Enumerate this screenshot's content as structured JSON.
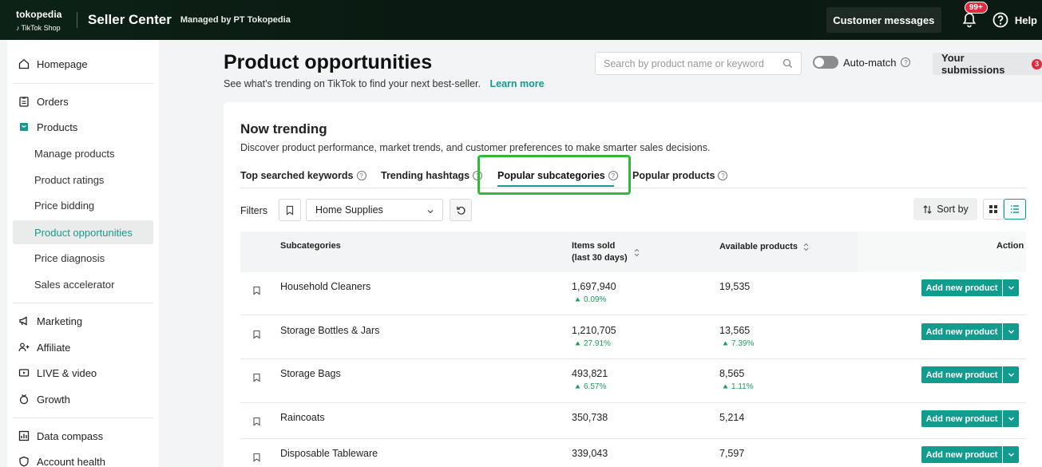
{
  "topbar": {
    "brand_top": "tokopedia",
    "brand_bottom": "TikTok Shop",
    "title": "Seller Center",
    "managed": "Managed by PT Tokopedia",
    "customer_messages": "Customer messages",
    "notif_badge": "99+",
    "help": "Help"
  },
  "sidebar": {
    "items": [
      {
        "label": "Homepage",
        "icon": "home-icon"
      },
      {
        "label": "Orders",
        "icon": "clipboard-icon"
      },
      {
        "label": "Products",
        "icon": "bag-icon"
      },
      {
        "label": "Manage products"
      },
      {
        "label": "Product ratings"
      },
      {
        "label": "Price bidding"
      },
      {
        "label": "Product opportunities"
      },
      {
        "label": "Price diagnosis"
      },
      {
        "label": "Sales accelerator"
      },
      {
        "label": "Marketing",
        "icon": "megaphone-icon"
      },
      {
        "label": "Affiliate",
        "icon": "people-icon"
      },
      {
        "label": "LIVE & video",
        "icon": "video-icon"
      },
      {
        "label": "Growth",
        "icon": "growth-icon"
      },
      {
        "label": "Data compass",
        "icon": "chart-icon"
      },
      {
        "label": "Account health",
        "icon": "shield-icon"
      }
    ]
  },
  "header": {
    "title": "Product opportunities",
    "subtitle": "See what's trending on TikTok to find your next best-seller.",
    "learn_more": "Learn more",
    "search_placeholder": "Search by product name or keyword",
    "automatch": "Auto-match",
    "your_submissions": "Your submissions",
    "submissions_count": "3"
  },
  "card": {
    "title": "Now trending",
    "subtitle": "Discover product performance, market trends, and customer preferences to make smarter sales decisions.",
    "tabs": [
      "Top searched keywords",
      "Trending hashtags",
      "Popular subcategories",
      "Popular products"
    ],
    "active_tab": "Popular subcategories",
    "filters_label": "Filters",
    "category_value": "Home Supplies",
    "sort_by": "Sort by"
  },
  "table": {
    "headers": {
      "subcategories": "Subcategories",
      "items_sold_1": "Items sold",
      "items_sold_2": "(last 30 days)",
      "available": "Available products",
      "action": "Action"
    },
    "rows": [
      {
        "name": "Household Cleaners",
        "sold": "1,697,940",
        "sold_delta": "0.09%",
        "available": "19,535",
        "available_delta": "",
        "action": "Add new product"
      },
      {
        "name": "Storage Bottles & Jars",
        "sold": "1,210,705",
        "sold_delta": "27.91%",
        "available": "13,565",
        "available_delta": "7.39%",
        "action": "Add new product"
      },
      {
        "name": "Storage Bags",
        "sold": "493,821",
        "sold_delta": "6.57%",
        "available": "8,565",
        "available_delta": "1.11%",
        "action": "Add new product"
      },
      {
        "name": "Raincoats",
        "sold": "350,738",
        "sold_delta": "",
        "available": "5,214",
        "available_delta": "",
        "action": "Add new product"
      },
      {
        "name": "Disposable Tableware",
        "sold": "339,043",
        "sold_delta": "",
        "available": "7,597",
        "available_delta": "",
        "action": "Add new product"
      }
    ]
  },
  "colors": {
    "accent": "#129c8e",
    "positive": "#1a9e5a",
    "badge": "#e5293c",
    "highlight": "#30b93a"
  }
}
